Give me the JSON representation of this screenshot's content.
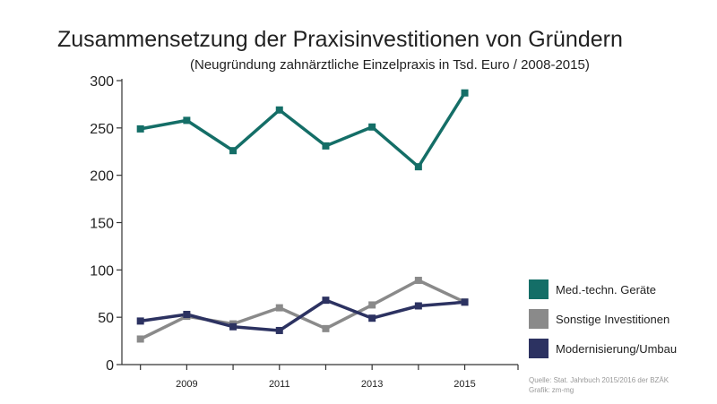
{
  "chart_data": {
    "type": "line",
    "title": "Zusammensetzung der Praxisinvestitionen von Gründern",
    "subtitle": "(Neugründung zahnärztliche Einzelpraxis in Tsd. Euro / 2008-2015)",
    "x": [
      2008,
      2009,
      2010,
      2011,
      2012,
      2013,
      2014,
      2015
    ],
    "x_tick_labels": [
      "2009",
      "2011",
      "2013",
      "2015"
    ],
    "x_tick_values": [
      2009,
      2011,
      2013,
      2015
    ],
    "y_tick_labels": [
      "0",
      "50",
      "100",
      "150",
      "200",
      "250",
      "300"
    ],
    "ylim": [
      0,
      300
    ],
    "grid": false,
    "legend_position": "right",
    "series": [
      {
        "name": "Med.-techn. Geräte",
        "color": "#146e67",
        "values": [
          249,
          258,
          226,
          269,
          231,
          251,
          209,
          287
        ]
      },
      {
        "name": "Sonstige Investitionen",
        "color": "#8a8a8a",
        "values": [
          27,
          51,
          43,
          60,
          38,
          63,
          89,
          66
        ]
      },
      {
        "name": "Modernisierung/Umbau",
        "color": "#2c3261",
        "values": [
          46,
          53,
          40,
          36,
          68,
          49,
          62,
          66
        ]
      }
    ],
    "source_lines": [
      "Quelle: Stat. Jahrbuch 2015/2016 der BZÄK",
      "Grafik: zm-mg"
    ]
  }
}
